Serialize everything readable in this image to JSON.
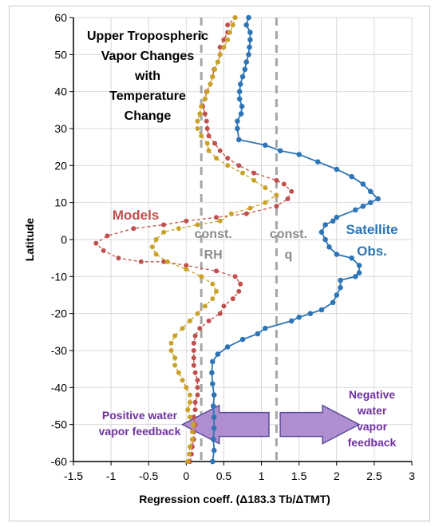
{
  "chart_data": {
    "type": "line",
    "title": [
      "Upper Tropospheric",
      "Vapor Changes",
      "with",
      "Temperature",
      "Change"
    ],
    "xlabel": "Regression coeff. (Δ183.3 Tb/ΔTMT)",
    "ylabel": "Latitude",
    "xlim": [
      -1.5,
      3
    ],
    "ylim": [
      -60,
      60
    ],
    "xticks": [
      "-1.5",
      "-1",
      "-0.5",
      "0",
      "0.5",
      "1",
      "1.5",
      "2",
      "2.5",
      "3"
    ],
    "yticks": [
      "-60",
      "-50",
      "-40",
      "-30",
      "-20",
      "-10",
      "0",
      "10",
      "20",
      "30",
      "40",
      "50",
      "60"
    ],
    "grid": "both",
    "reference_lines": [
      {
        "label": [
          "const.",
          "RH"
        ],
        "x": 0.2
      },
      {
        "label": [
          "const.",
          "q"
        ],
        "x": 1.2
      }
    ],
    "series": [
      {
        "name": "Satellite Obs.",
        "label_lines": [
          "Satellite",
          "Obs."
        ],
        "color": "#2e75b6",
        "style": "solid",
        "points": [
          [
            0.35,
            -60
          ],
          [
            0.37,
            -57
          ],
          [
            0.36,
            -54
          ],
          [
            0.37,
            -51
          ],
          [
            0.37,
            -48
          ],
          [
            0.36,
            -45
          ],
          [
            0.37,
            -42
          ],
          [
            0.35,
            -39
          ],
          [
            0.34,
            -36
          ],
          [
            0.35,
            -33
          ],
          [
            0.42,
            -31
          ],
          [
            0.55,
            -29
          ],
          [
            0.75,
            -27
          ],
          [
            0.95,
            -25.5
          ],
          [
            1.05,
            -24
          ],
          [
            1.4,
            -22
          ],
          [
            1.5,
            -21
          ],
          [
            1.65,
            -20
          ],
          [
            1.8,
            -19
          ],
          [
            1.95,
            -17
          ],
          [
            2.0,
            -15
          ],
          [
            2.05,
            -13
          ],
          [
            2.05,
            -11
          ],
          [
            2.25,
            -10
          ],
          [
            2.3,
            -9
          ],
          [
            2.3,
            -7
          ],
          [
            2.2,
            -5
          ],
          [
            2.0,
            -4
          ],
          [
            1.9,
            -2
          ],
          [
            1.85,
            0
          ],
          [
            1.8,
            2
          ],
          [
            1.85,
            4
          ],
          [
            1.95,
            5
          ],
          [
            2.0,
            6
          ],
          [
            2.25,
            8
          ],
          [
            2.35,
            9
          ],
          [
            2.45,
            10
          ],
          [
            2.55,
            11
          ],
          [
            2.45,
            13
          ],
          [
            2.35,
            15
          ],
          [
            2.2,
            17
          ],
          [
            2.0,
            19
          ],
          [
            1.75,
            21
          ],
          [
            1.5,
            23
          ],
          [
            1.25,
            24
          ],
          [
            1.05,
            25.5
          ],
          [
            0.7,
            27
          ],
          [
            0.68,
            30
          ],
          [
            0.68,
            32
          ],
          [
            0.73,
            34
          ],
          [
            0.74,
            36
          ],
          [
            0.71,
            38
          ],
          [
            0.71,
            40
          ],
          [
            0.72,
            42
          ],
          [
            0.75,
            44
          ],
          [
            0.78,
            46
          ],
          [
            0.8,
            48
          ],
          [
            0.83,
            50
          ],
          [
            0.84,
            52
          ],
          [
            0.85,
            54
          ],
          [
            0.85,
            56
          ],
          [
            0.8,
            58
          ],
          [
            0.83,
            60
          ]
        ]
      },
      {
        "name": "Models",
        "label_lines": [
          "Models"
        ],
        "color": "#c0504d",
        "style": "dashed",
        "points": [
          [
            0.05,
            -60
          ],
          [
            0.07,
            -58
          ],
          [
            0.08,
            -56
          ],
          [
            0.1,
            -54
          ],
          [
            0.1,
            -52
          ],
          [
            0.12,
            -50
          ],
          [
            0.1,
            -48
          ],
          [
            0.12,
            -46
          ],
          [
            0.12,
            -44
          ],
          [
            0.15,
            -42
          ],
          [
            0.15,
            -40
          ],
          [
            0.15,
            -38
          ],
          [
            0.12,
            -36
          ],
          [
            0.1,
            -34
          ],
          [
            0.1,
            -32
          ],
          [
            0.1,
            -30
          ],
          [
            0.1,
            -28
          ],
          [
            0.12,
            -26
          ],
          [
            0.18,
            -24
          ],
          [
            0.3,
            -22
          ],
          [
            0.45,
            -20
          ],
          [
            0.5,
            -18
          ],
          [
            0.62,
            -16
          ],
          [
            0.7,
            -14
          ],
          [
            0.72,
            -12
          ],
          [
            0.65,
            -10
          ],
          [
            0.4,
            -8.5
          ],
          [
            0.0,
            -7
          ],
          [
            -0.3,
            -6
          ],
          [
            -0.6,
            -6
          ],
          [
            -0.9,
            -5
          ],
          [
            -1.1,
            -3
          ],
          [
            -1.2,
            -1
          ],
          [
            -1.05,
            1
          ],
          [
            -0.7,
            3
          ],
          [
            -0.3,
            4
          ],
          [
            0.0,
            5
          ],
          [
            0.4,
            6
          ],
          [
            0.8,
            7
          ],
          [
            1.2,
            9
          ],
          [
            1.35,
            11
          ],
          [
            1.4,
            13
          ],
          [
            1.3,
            15
          ],
          [
            1.2,
            16
          ],
          [
            0.9,
            18
          ],
          [
            0.7,
            20
          ],
          [
            0.55,
            22
          ],
          [
            0.45,
            24
          ],
          [
            0.38,
            26
          ],
          [
            0.3,
            28
          ],
          [
            0.28,
            30
          ],
          [
            0.27,
            32
          ],
          [
            0.25,
            34
          ],
          [
            0.22,
            36
          ],
          [
            0.25,
            38
          ],
          [
            0.27,
            40
          ],
          [
            0.32,
            42
          ],
          [
            0.35,
            44
          ],
          [
            0.37,
            46
          ],
          [
            0.42,
            48
          ],
          [
            0.45,
            50
          ],
          [
            0.45,
            52
          ],
          [
            0.5,
            54
          ],
          [
            0.55,
            56
          ],
          [
            0.55,
            58
          ],
          [
            0.65,
            60
          ]
        ]
      },
      {
        "name": "",
        "color": "#c9a227",
        "style": "dashed",
        "points": [
          [
            0.02,
            -60
          ],
          [
            0.04,
            -58
          ],
          [
            0.05,
            -56
          ],
          [
            0.08,
            -54
          ],
          [
            0.08,
            -52
          ],
          [
            0.1,
            -50
          ],
          [
            0.05,
            -48
          ],
          [
            0.02,
            -46
          ],
          [
            0.05,
            -44
          ],
          [
            0.05,
            -42
          ],
          [
            0.0,
            -40
          ],
          [
            -0.05,
            -38
          ],
          [
            -0.1,
            -36
          ],
          [
            -0.15,
            -34
          ],
          [
            -0.15,
            -32
          ],
          [
            -0.2,
            -30
          ],
          [
            -0.2,
            -28
          ],
          [
            -0.15,
            -26
          ],
          [
            -0.05,
            -24
          ],
          [
            0.05,
            -22
          ],
          [
            0.15,
            -20
          ],
          [
            0.25,
            -18
          ],
          [
            0.35,
            -16
          ],
          [
            0.4,
            -14
          ],
          [
            0.35,
            -12
          ],
          [
            0.2,
            -10
          ],
          [
            0.0,
            -8
          ],
          [
            -0.25,
            -6
          ],
          [
            -0.4,
            -4
          ],
          [
            -0.45,
            -2
          ],
          [
            -0.4,
            0
          ],
          [
            -0.3,
            2
          ],
          [
            -0.1,
            3
          ],
          [
            0.15,
            4
          ],
          [
            0.45,
            5
          ],
          [
            0.6,
            7
          ],
          [
            0.85,
            8.5
          ],
          [
            1.05,
            10
          ],
          [
            1.2,
            12
          ],
          [
            1.05,
            14
          ],
          [
            0.9,
            16
          ],
          [
            0.75,
            18
          ],
          [
            0.55,
            20
          ],
          [
            0.4,
            22
          ],
          [
            0.3,
            24
          ],
          [
            0.28,
            26
          ],
          [
            0.2,
            28
          ],
          [
            0.15,
            30
          ],
          [
            0.15,
            32
          ],
          [
            0.18,
            34
          ],
          [
            0.2,
            36
          ],
          [
            0.25,
            38
          ],
          [
            0.28,
            40
          ],
          [
            0.32,
            42
          ],
          [
            0.35,
            44
          ],
          [
            0.38,
            46
          ],
          [
            0.42,
            48
          ],
          [
            0.45,
            50
          ],
          [
            0.5,
            52
          ],
          [
            0.55,
            54
          ],
          [
            0.58,
            56
          ],
          [
            0.62,
            58
          ],
          [
            0.65,
            60
          ]
        ]
      }
    ],
    "annotations": {
      "left_arrow_label": [
        "Positive water",
        "vapor feedback"
      ],
      "right_arrow_label": [
        "Negative",
        "water",
        "vapor",
        "feedback"
      ],
      "arrow_color": "#b08fd0",
      "arrow_edge": "#5b4d9a",
      "arrow_text_color": "#7030a0"
    }
  }
}
